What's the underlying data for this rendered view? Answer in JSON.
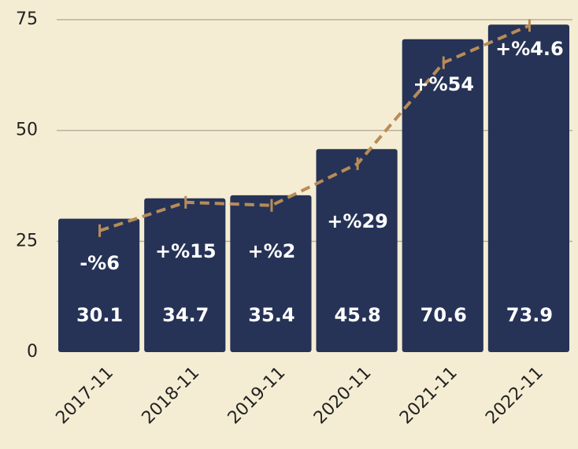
{
  "chart_data": {
    "type": "bar",
    "categories": [
      "2017-11",
      "2018-11",
      "2019-11",
      "2020-11",
      "2021-11",
      "2022-11"
    ],
    "values": [
      30.1,
      34.7,
      35.4,
      45.8,
      70.6,
      73.9
    ],
    "color": "#263357",
    "line": {
      "type": "line",
      "values": [
        27.4,
        33.8,
        33.1,
        42.5,
        65.3,
        73.7
      ],
      "color": "#b88c58",
      "dashed": true
    },
    "annotations": [
      "-%6",
      "+%15",
      "+%2",
      "+%29",
      "+%54",
      "+%4.6"
    ],
    "ylim": [
      0,
      75
    ],
    "yticks": [
      0,
      25,
      50,
      75
    ],
    "grid": true
  }
}
